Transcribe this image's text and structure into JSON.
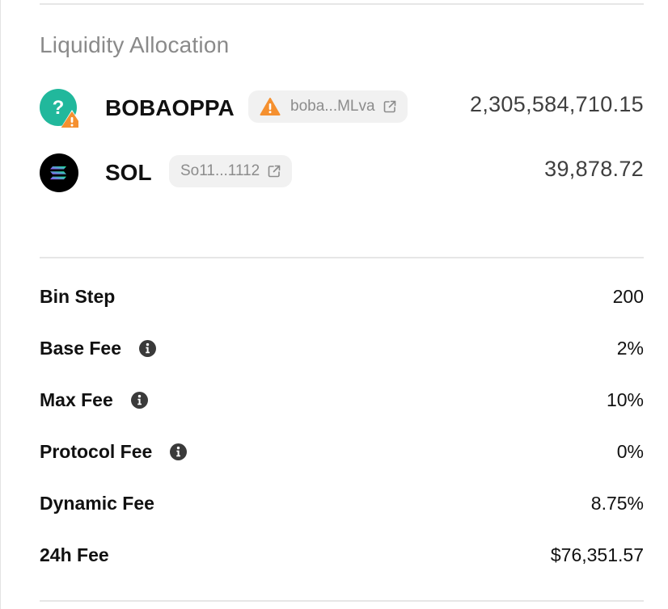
{
  "allocation": {
    "title": "Liquidity Allocation",
    "tokens": [
      {
        "symbol": "BOBAOPPA",
        "address_short": "boba...MLva",
        "amount": "2,305,584,710.15",
        "icon": "unknown-token-icon",
        "warning": true
      },
      {
        "symbol": "SOL",
        "address_short": "So11...1112",
        "amount": "39,878.72",
        "icon": "solana-icon",
        "warning": false
      }
    ]
  },
  "fees": {
    "rows": [
      {
        "label": "Bin Step",
        "value": "200",
        "info": false
      },
      {
        "label": "Base Fee",
        "value": "2%",
        "info": true
      },
      {
        "label": "Max Fee",
        "value": "10%",
        "info": true
      },
      {
        "label": "Protocol Fee",
        "value": "0%",
        "info": true
      },
      {
        "label": "Dynamic Fee",
        "value": "8.75%",
        "info": false
      },
      {
        "label": "24h Fee",
        "value": "$76,351.57",
        "info": false
      }
    ]
  },
  "colors": {
    "warning": "#f5902f",
    "unknown_token_bg": "#21b89c",
    "title_gray": "#8a8a8a",
    "pill_bg": "#f1f1f1",
    "divider": "#e6e6e6"
  }
}
